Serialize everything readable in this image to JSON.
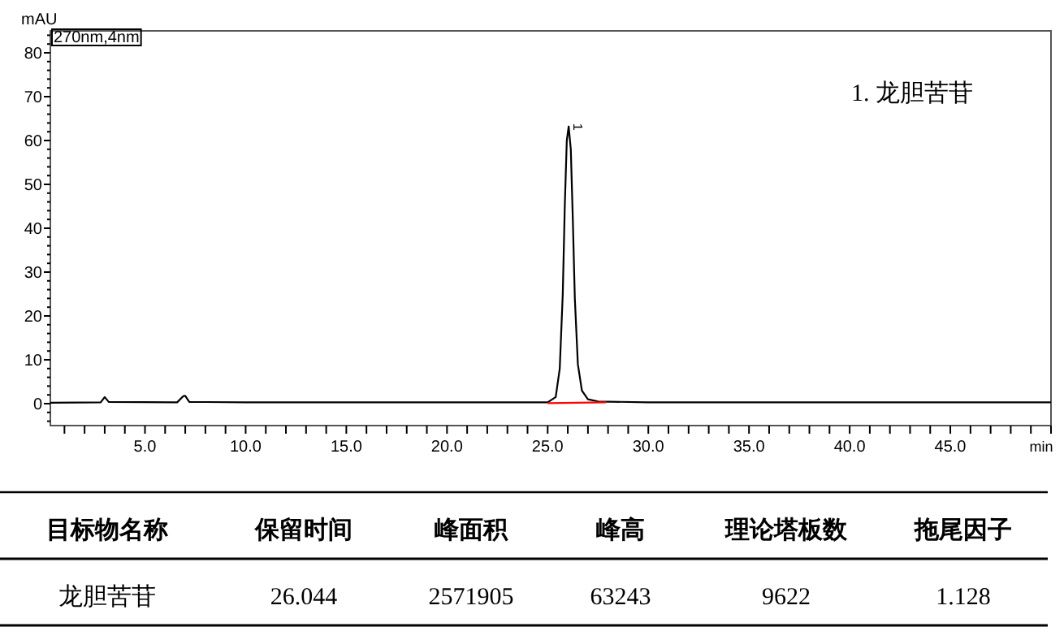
{
  "chart_data": [
    {
      "type": "line",
      "xlabel": "min",
      "ylabel": "mAU",
      "xlim": [
        0.3,
        50
      ],
      "ylim": [
        -5,
        85
      ],
      "xticks": [
        {
          "value": 1,
          "label": null
        },
        {
          "value": 2,
          "label": null
        },
        {
          "value": 3,
          "label": null
        },
        {
          "value": 4,
          "label": null
        },
        {
          "value": 5,
          "label": "5.0"
        },
        {
          "value": 6,
          "label": null
        },
        {
          "value": 7,
          "label": null
        },
        {
          "value": 8,
          "label": null
        },
        {
          "value": 9,
          "label": null
        },
        {
          "value": 10,
          "label": "10.0"
        },
        {
          "value": 11,
          "label": null
        },
        {
          "value": 12,
          "label": null
        },
        {
          "value": 13,
          "label": null
        },
        {
          "value": 14,
          "label": null
        },
        {
          "value": 15,
          "label": "15.0"
        },
        {
          "value": 16,
          "label": null
        },
        {
          "value": 17,
          "label": null
        },
        {
          "value": 18,
          "label": null
        },
        {
          "value": 19,
          "label": null
        },
        {
          "value": 20,
          "label": "20.0"
        },
        {
          "value": 21,
          "label": null
        },
        {
          "value": 22,
          "label": null
        },
        {
          "value": 23,
          "label": null
        },
        {
          "value": 24,
          "label": null
        },
        {
          "value": 25,
          "label": "25.0"
        },
        {
          "value": 26,
          "label": null
        },
        {
          "value": 27,
          "label": null
        },
        {
          "value": 28,
          "label": null
        },
        {
          "value": 29,
          "label": null
        },
        {
          "value": 30,
          "label": "30.0"
        },
        {
          "value": 31,
          "label": null
        },
        {
          "value": 32,
          "label": null
        },
        {
          "value": 33,
          "label": null
        },
        {
          "value": 34,
          "label": null
        },
        {
          "value": 35,
          "label": "35.0"
        },
        {
          "value": 36,
          "label": null
        },
        {
          "value": 37,
          "label": null
        },
        {
          "value": 38,
          "label": null
        },
        {
          "value": 39,
          "label": null
        },
        {
          "value": 40,
          "label": "40.0"
        },
        {
          "value": 41,
          "label": null
        },
        {
          "value": 42,
          "label": null
        },
        {
          "value": 43,
          "label": null
        },
        {
          "value": 44,
          "label": null
        },
        {
          "value": 45,
          "label": "45.0"
        },
        {
          "value": 46,
          "label": null
        },
        {
          "value": 47,
          "label": null
        },
        {
          "value": 48,
          "label": null
        },
        {
          "value": 49,
          "label": null
        },
        {
          "value": 50,
          "label": null
        }
      ],
      "yticks": [
        {
          "value": -4,
          "label": null
        },
        {
          "value": -2,
          "label": null
        },
        0,
        {
          "value": 2,
          "label": null
        },
        {
          "value": 4,
          "label": null
        },
        {
          "value": 6,
          "label": null
        },
        {
          "value": 8,
          "label": null
        },
        10,
        {
          "value": 12,
          "label": null
        },
        {
          "value": 14,
          "label": null
        },
        {
          "value": 16,
          "label": null
        },
        {
          "value": 18,
          "label": null
        },
        20,
        {
          "value": 22,
          "label": null
        },
        {
          "value": 24,
          "label": null
        },
        {
          "value": 26,
          "label": null
        },
        {
          "value": 28,
          "label": null
        },
        30,
        {
          "value": 32,
          "label": null
        },
        {
          "value": 34,
          "label": null
        },
        {
          "value": 36,
          "label": null
        },
        {
          "value": 38,
          "label": null
        },
        40,
        {
          "value": 42,
          "label": null
        },
        {
          "value": 44,
          "label": null
        },
        {
          "value": 46,
          "label": null
        },
        {
          "value": 48,
          "label": null
        },
        50,
        {
          "value": 52,
          "label": null
        },
        {
          "value": 54,
          "label": null
        },
        {
          "value": 56,
          "label": null
        },
        {
          "value": 58,
          "label": null
        },
        60,
        {
          "value": 62,
          "label": null
        },
        {
          "value": 64,
          "label": null
        },
        {
          "value": 66,
          "label": null
        },
        {
          "value": 68,
          "label": null
        },
        70,
        {
          "value": 72,
          "label": null
        },
        {
          "value": 74,
          "label": null
        },
        {
          "value": 76,
          "label": null
        },
        {
          "value": 78,
          "label": null
        },
        80,
        {
          "value": 82,
          "label": null
        },
        {
          "value": 84,
          "label": null
        }
      ],
      "series": [
        {
          "color": "#000000",
          "x": [
            0.3,
            2.8,
            3.0,
            3.2,
            6.6,
            6.9,
            7.0,
            7.2,
            10,
            20,
            25.0,
            25.4,
            25.6,
            25.75,
            25.85,
            25.95,
            26.044,
            26.15,
            26.25,
            26.35,
            26.5,
            26.7,
            27.0,
            27.5,
            30,
            50
          ],
          "values": [
            0.2,
            0.3,
            1.5,
            0.4,
            0.3,
            1.7,
            1.8,
            0.4,
            0.3,
            0.3,
            0.3,
            1.5,
            8,
            25,
            45,
            60,
            63.2,
            58,
            42,
            24,
            9,
            3,
            1,
            0.5,
            0.3,
            0.3
          ]
        },
        {
          "color": "#ff0000",
          "x": [
            25.0,
            27.9
          ],
          "values": [
            0.1,
            0.3
          ]
        }
      ],
      "annotations": [
        "270nm,4nm",
        {
          "text": "1",
          "x": 26.044,
          "y": 63.2
        },
        "1.   龙胆苦苷"
      ]
    },
    {
      "type": "other",
      "annotations": [
        "目标物名称",
        "保留时间",
        "峰面积",
        "峰高",
        "理论塔板数",
        "拖尾因子",
        "龙胆苦苷",
        "26.044",
        "2571905",
        "63243",
        "9622",
        "1.128"
      ]
    }
  ]
}
